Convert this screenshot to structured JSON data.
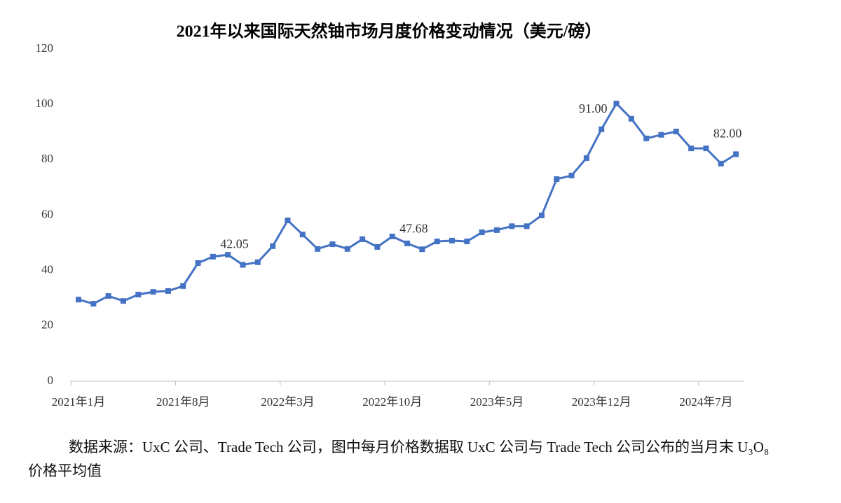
{
  "chart_data": {
    "type": "line",
    "title": "2021年以来国际天然铀市场月度价格变动情况（美元/磅）",
    "categories": [
      "2021年1月",
      null,
      null,
      null,
      null,
      null,
      null,
      "2021年8月",
      null,
      null,
      null,
      null,
      null,
      null,
      "2022年3月",
      null,
      null,
      null,
      null,
      null,
      null,
      "2022年10月",
      null,
      null,
      null,
      null,
      null,
      null,
      "2023年5月",
      null,
      null,
      null,
      null,
      null,
      null,
      "2023年12月",
      null,
      null,
      null,
      null,
      null,
      null,
      "2024年7月",
      null,
      null
    ],
    "series": [
      {
        "color": "#4472c4",
        "values": [
          29.5,
          28,
          30.8,
          29,
          31.3,
          32.3,
          32.6,
          34.4,
          42.7,
          45,
          45.7,
          42.05,
          43,
          48.8,
          58.1,
          53,
          47.8,
          49.5,
          47.8,
          51.3,
          48.5,
          52.3,
          49.8,
          47.68,
          50.5,
          50.8,
          50.5,
          53.8,
          54.6,
          56,
          56,
          59.9,
          73,
          74.3,
          80.6,
          91,
          100.3,
          94.8,
          87.7,
          89,
          90.2,
          84.1,
          84.1,
          78.6,
          82
        ],
        "value_labels": [
          null,
          null,
          null,
          null,
          null,
          null,
          null,
          null,
          null,
          null,
          null,
          "42.05",
          null,
          null,
          null,
          null,
          null,
          null,
          null,
          null,
          null,
          null,
          null,
          "47.68",
          null,
          null,
          null,
          null,
          null,
          null,
          null,
          null,
          null,
          null,
          null,
          "91.00",
          null,
          null,
          null,
          null,
          null,
          null,
          null,
          null,
          "82.00"
        ]
      }
    ],
    "ylim": [
      0,
      120
    ],
    "yticks": [
      0,
      20,
      40,
      60,
      80,
      100,
      120
    ],
    "grid": false,
    "source": "数据来源：UxC 公司、Trade Tech 公司，图中每月价格数据取 UxC 公司与 Trade Tech 公司公布的当月末 U₃O₈ 价格平均值"
  }
}
